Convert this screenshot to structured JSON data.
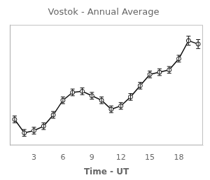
{
  "chart_data": {
    "type": "line",
    "title": "Vostok - Annual Average",
    "xlabel": "Time - UT",
    "x": [
      1,
      2,
      3,
      4,
      5,
      6,
      7,
      8,
      9,
      10,
      11,
      12,
      13,
      14,
      15,
      16,
      17,
      18,
      19,
      20
    ],
    "values": [
      0.88,
      0.76,
      0.78,
      0.82,
      0.92,
      1.05,
      1.12,
      1.13,
      1.09,
      1.05,
      0.97,
      1.0,
      1.08,
      1.18,
      1.28,
      1.3,
      1.32,
      1.42,
      1.58,
      1.55
    ],
    "yerr": [
      0.03,
      0.03,
      0.03,
      0.03,
      0.03,
      0.03,
      0.03,
      0.03,
      0.03,
      0.03,
      0.03,
      0.03,
      0.03,
      0.03,
      0.03,
      0.03,
      0.03,
      0.03,
      0.04,
      0.04
    ],
    "color": "#111111",
    "marker": "circle",
    "xlim": [
      0.5,
      20.5
    ],
    "ylim": [
      0.65,
      1.72
    ],
    "xticks": [
      3,
      6,
      9,
      12,
      15,
      18
    ],
    "tick_labels": "x",
    "grid": false
  }
}
